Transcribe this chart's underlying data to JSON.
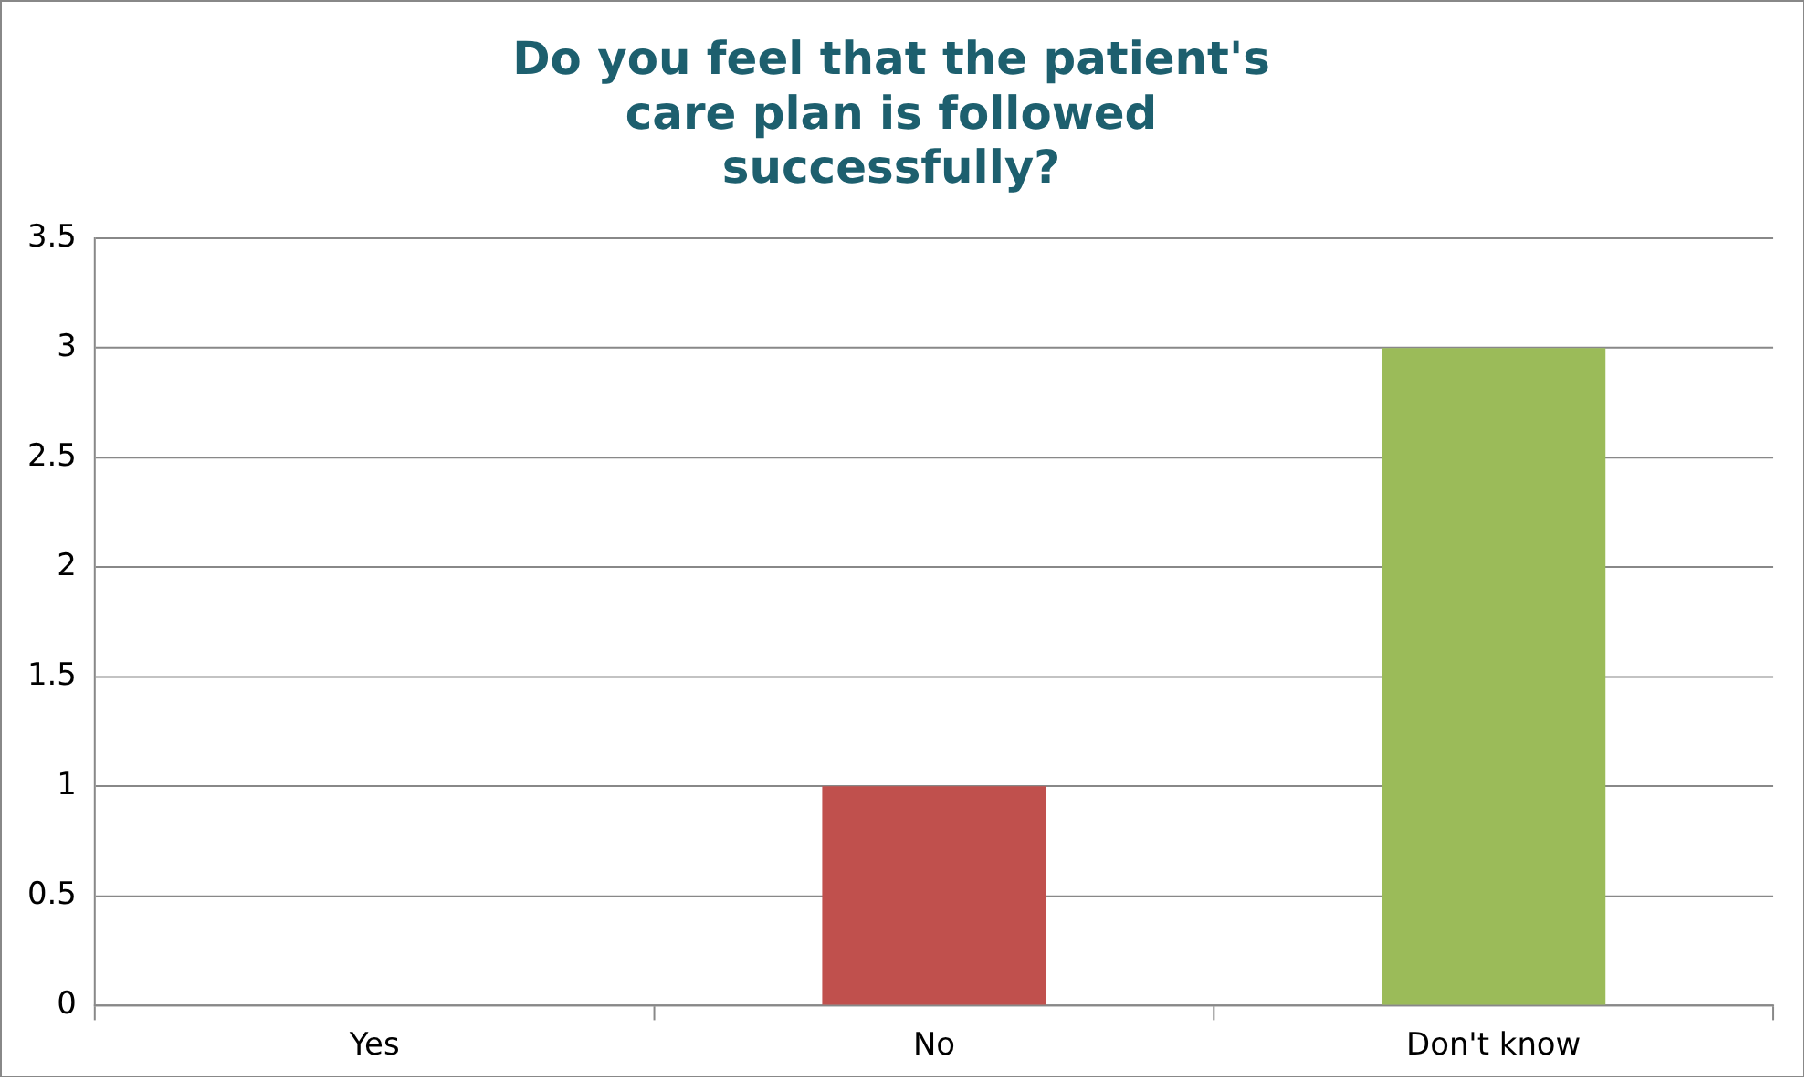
{
  "chart_data": {
    "type": "bar",
    "title": "Do you feel that the patient's care plan is followed successfully?",
    "categories": [
      "Yes",
      "No",
      "Don't know"
    ],
    "values": [
      0,
      1,
      3
    ],
    "colors": [
      "#4f81bd",
      "#c0504d",
      "#9bbb59"
    ],
    "ylim": [
      0,
      3.5
    ],
    "yticks": [
      0,
      0.5,
      1,
      1.5,
      2,
      2.5,
      3,
      3.5
    ],
    "grid": "y",
    "legend": false
  }
}
